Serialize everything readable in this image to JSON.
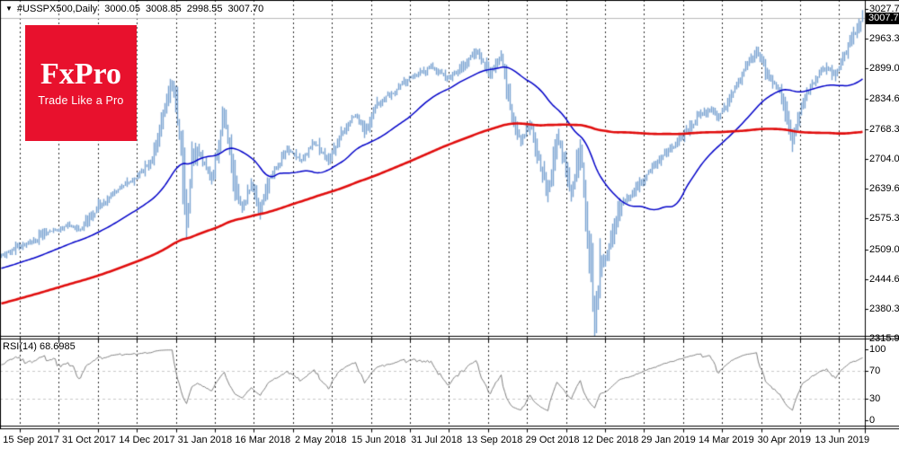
{
  "header": {
    "collapse_icon": "▼",
    "symbol_line": "#USSPX500,Daily",
    "open": "3000.05",
    "high": "3008.85",
    "low": "2998.55",
    "close": "3007.70"
  },
  "logo": {
    "title": "FxPro",
    "tagline": "Trade Like a Pro",
    "bg": "#e8112d"
  },
  "price_axis": {
    "ticks": [
      {
        "label": "3027.70",
        "value": 3027.7
      },
      {
        "label": "2963.35",
        "value": 2963.35
      },
      {
        "label": "2899.00",
        "value": 2899.0
      },
      {
        "label": "2834.65",
        "value": 2834.65
      },
      {
        "label": "2768.35",
        "value": 2768.35
      },
      {
        "label": "2704.00",
        "value": 2704.0
      },
      {
        "label": "2639.65",
        "value": 2639.65
      },
      {
        "label": "2575.30",
        "value": 2575.3
      },
      {
        "label": "2509.00",
        "value": 2509.0
      },
      {
        "label": "2444.65",
        "value": 2444.65
      },
      {
        "label": "2380.30",
        "value": 2380.3
      },
      {
        "label": "2315.95",
        "value": 2315.95
      }
    ],
    "current": {
      "label": "3007.70",
      "value": 3007.7
    }
  },
  "rsi_axis": {
    "ticks": [
      {
        "label": "100",
        "value": 100
      },
      {
        "label": "70",
        "value": 70
      },
      {
        "label": "30",
        "value": 30
      },
      {
        "label": "0",
        "value": 0
      }
    ]
  },
  "time_axis": {
    "labels": [
      "15 Sep 2017",
      "31 Oct 2017",
      "14 Dec 2017",
      "31 Jan 2018",
      "16 Mar 2018",
      "2 May 2018",
      "15 Jun 2018",
      "31 Jul 2018",
      "13 Sep 2018",
      "29 Oct 2018",
      "12 Dec 2018",
      "29 Jan 2019",
      "14 Mar 2019",
      "30 Apr 2019",
      "13 Jun 2019"
    ]
  },
  "chart_data": {
    "type": "candlestick",
    "title": "#USSPX500,Daily",
    "symbol": "#USSPX500",
    "timeframe": "Daily",
    "ohlc_current": {
      "open": 3000.05,
      "high": 3008.85,
      "low": 2998.55,
      "close": 3007.7
    },
    "price_axis_ticks": [
      3027.7,
      2963.35,
      2899.0,
      2834.65,
      2768.35,
      2704.0,
      2639.65,
      2575.3,
      2509.0,
      2444.65,
      2380.3,
      2315.95
    ],
    "x_labels": [
      "15 Sep 2017",
      "31 Oct 2017",
      "14 Dec 2017",
      "31 Jan 2018",
      "16 Mar 2018",
      "2 May 2018",
      "15 Jun 2018",
      "31 Jul 2018",
      "13 Sep 2018",
      "29 Oct 2018",
      "12 Dec 2018",
      "29 Jan 2019",
      "14 Mar 2019",
      "30 Apr 2019",
      "13 Jun 2019"
    ],
    "visible_bars": 480,
    "close_anchors": [
      [
        0,
        2495
      ],
      [
        8,
        2512
      ],
      [
        15,
        2520
      ],
      [
        24,
        2545
      ],
      [
        33,
        2552
      ],
      [
        37,
        2563
      ],
      [
        43,
        2550
      ],
      [
        54,
        2600
      ],
      [
        65,
        2640
      ],
      [
        74,
        2662
      ],
      [
        84,
        2700
      ],
      [
        88,
        2772
      ],
      [
        95,
        2872
      ],
      [
        99,
        2760
      ],
      [
        103,
        2558
      ],
      [
        106,
        2690
      ],
      [
        109,
        2722
      ],
      [
        117,
        2660
      ],
      [
        124,
        2800
      ],
      [
        130,
        2640
      ],
      [
        134,
        2590
      ],
      [
        139,
        2652
      ],
      [
        144,
        2592
      ],
      [
        149,
        2662
      ],
      [
        159,
        2722
      ],
      [
        167,
        2700
      ],
      [
        174,
        2742
      ],
      [
        182,
        2700
      ],
      [
        189,
        2760
      ],
      [
        197,
        2802
      ],
      [
        202,
        2762
      ],
      [
        209,
        2822
      ],
      [
        219,
        2852
      ],
      [
        229,
        2882
      ],
      [
        239,
        2902
      ],
      [
        249,
        2880
      ],
      [
        257,
        2906
      ],
      [
        264,
        2940
      ],
      [
        272,
        2888
      ],
      [
        278,
        2930
      ],
      [
        284,
        2790
      ],
      [
        289,
        2742
      ],
      [
        294,
        2782
      ],
      [
        299,
        2702
      ],
      [
        304,
        2632
      ],
      [
        309,
        2750
      ],
      [
        313,
        2702
      ],
      [
        317,
        2632
      ],
      [
        322,
        2732
      ],
      [
        325,
        2602
      ],
      [
        328,
        2452
      ],
      [
        330,
        2352
      ],
      [
        333,
        2472
      ],
      [
        337,
        2502
      ],
      [
        344,
        2602
      ],
      [
        351,
        2632
      ],
      [
        359,
        2672
      ],
      [
        369,
        2712
      ],
      [
        379,
        2752
      ],
      [
        387,
        2792
      ],
      [
        394,
        2812
      ],
      [
        399,
        2792
      ],
      [
        406,
        2842
      ],
      [
        414,
        2902
      ],
      [
        420,
        2942
      ],
      [
        426,
        2882
      ],
      [
        433,
        2852
      ],
      [
        440,
        2744
      ],
      [
        446,
        2832
      ],
      [
        454,
        2882
      ],
      [
        459,
        2902
      ],
      [
        464,
        2882
      ],
      [
        471,
        2952
      ],
      [
        476,
        2982
      ],
      [
        479,
        3007.7
      ]
    ],
    "history_ramp": {
      "bars": 200,
      "from": 2290,
      "to": 2492
    },
    "overlays": [
      {
        "name": "MA-fast",
        "period": 50,
        "color": "#0000c8"
      },
      {
        "name": "MA-slow",
        "period": 200,
        "color": "#e00d0d"
      }
    ],
    "indicator": {
      "name": "RSI",
      "label": "RSI(14) 68.6985",
      "period": 14,
      "last_value": 68.6985,
      "levels": [
        30,
        70
      ],
      "range": [
        0,
        100
      ],
      "line_color": "#7f7f7f",
      "level_color": "#c8c8c8"
    },
    "colors": {
      "candle": "#7aa3d1",
      "grid": "#2a2a2a",
      "current_price_line": "#b8b8b8",
      "badge_bg": "#000000",
      "badge_fg": "#ffffff",
      "border": "#000000",
      "background": "#ffffff"
    },
    "grid": "vertical-dashed",
    "legend": "none"
  }
}
